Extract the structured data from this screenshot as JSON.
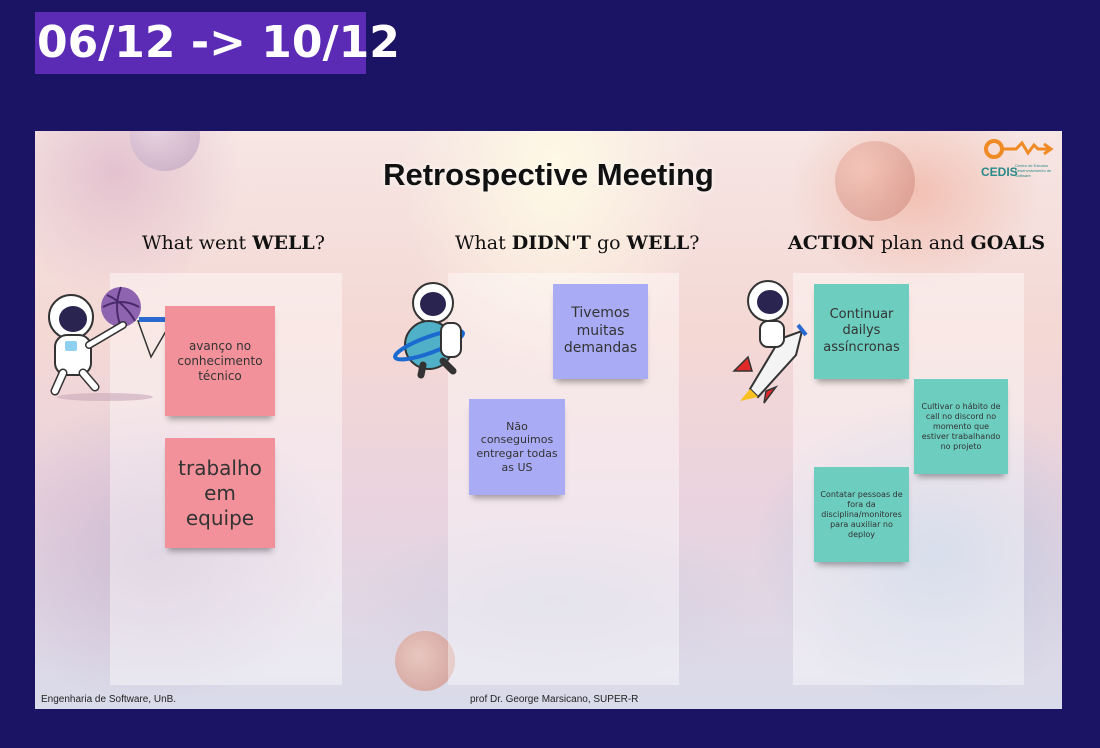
{
  "date_range": "06/12 -> 10/12",
  "board": {
    "title": "Retrospective Meeting",
    "logo_text": "CEDIS",
    "logo_subtext": "Centro de Estudos Desenvolvimento de Software",
    "footer_left": "Engenharia de Software, UnB.",
    "footer_center": "prof Dr. George Marsicano, SUPER-R"
  },
  "columns": [
    {
      "heading_prefix": "What went ",
      "heading_bold": "WELL",
      "heading_suffix": "?",
      "notes": [
        {
          "text": "avanço no conhecimento técnico",
          "color": "#f2919a"
        },
        {
          "text": "trabalho em equipe",
          "color": "#f2919a"
        }
      ]
    },
    {
      "heading_prefix": "What ",
      "heading_bold": "DIDN'T",
      "heading_mid": " go ",
      "heading_bold2": "WELL",
      "heading_suffix": "?",
      "notes": [
        {
          "text": "Tivemos muitas demandas",
          "color": "#a9abf5"
        },
        {
          "text": "Não conseguimos entregar todas as US",
          "color": "#a9abf5"
        }
      ]
    },
    {
      "heading_bold": "ACTION",
      "heading_mid": " plan and ",
      "heading_bold2": "GOALS",
      "notes": [
        {
          "text": "Continuar dailys assíncronas",
          "color": "#6dcdbf"
        },
        {
          "text": "Cultivar o hábito de call no discord no momento que estiver trabalhando no projeto",
          "color": "#6dcdbf"
        },
        {
          "text": "Contatar pessoas de fora da disciplina/monitores para auxiliar no deploy",
          "color": "#6dcdbf"
        }
      ]
    }
  ],
  "icons": {
    "astronaut_basketball": "astronaut-basketball-icon",
    "astronaut_planet": "astronaut-planet-icon",
    "astronaut_rocket": "astronaut-rocket-icon"
  }
}
